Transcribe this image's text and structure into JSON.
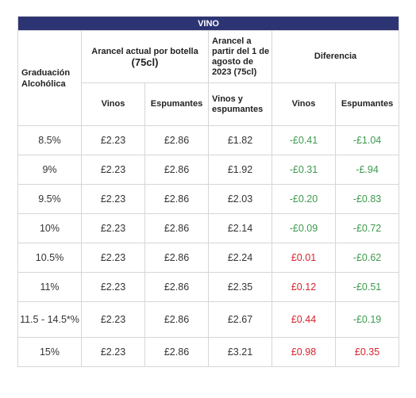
{
  "title": "VINO",
  "headers": {
    "graduacion": "Graduación Alcohólica",
    "arancel_actual_line1": "Arancel actual por botella",
    "arancel_actual_line2": "(75cl)",
    "arancel_nuevo": "Arancel a partir del 1 de agosto de 2023 (75cl)",
    "diferencia": "Diferencia",
    "vinos": "Vinos",
    "espumantes": "Espumantes",
    "vinos_y_espumantes": "Vinos y espumantes",
    "dif_vinos": "Vinos",
    "dif_espumantes": "Espumantes"
  },
  "rows": [
    {
      "grad": "8.5%",
      "vinos": "£2.23",
      "esp": "£2.86",
      "nuevo": "£1.82",
      "dif_vinos": "-£0.41",
      "dif_esp": "-£1.04"
    },
    {
      "grad": "9%",
      "vinos": "£2.23",
      "esp": "£2.86",
      "nuevo": "£1.92",
      "dif_vinos": "-£0.31",
      "dif_esp": "-£.94"
    },
    {
      "grad": "9.5%",
      "vinos": "£2.23",
      "esp": "£2.86",
      "nuevo": "£2.03",
      "dif_vinos": "-£0.20",
      "dif_esp": "-£0.83"
    },
    {
      "grad": "10%",
      "vinos": "£2.23",
      "esp": "£2.86",
      "nuevo": "£2.14",
      "dif_vinos": "-£0.09",
      "dif_esp": "-£0.72"
    },
    {
      "grad": "10.5%",
      "vinos": "£2.23",
      "esp": "£2.86",
      "nuevo": "£2.24",
      "dif_vinos": "£0.01",
      "dif_esp": "-£0.62"
    },
    {
      "grad": "11%",
      "vinos": "£2.23",
      "esp": "£2.86",
      "nuevo": "£2.35",
      "dif_vinos": "£0.12",
      "dif_esp": "-£0.51"
    },
    {
      "grad": "11.5 - 14.5*%",
      "vinos": "£2.23",
      "esp": "£2.86",
      "nuevo": "£2.67",
      "dif_vinos": "£0.44",
      "dif_esp": "-£0.19"
    },
    {
      "grad": "15%",
      "vinos": "£2.23",
      "esp": "£2.86",
      "nuevo": "£3.21",
      "dif_vinos": "£0.98",
      "dif_esp": "£0.35"
    }
  ],
  "colors": {
    "title_bg": "#2d3474",
    "negative": "#3d9a4d",
    "positive": "#d9232d"
  }
}
